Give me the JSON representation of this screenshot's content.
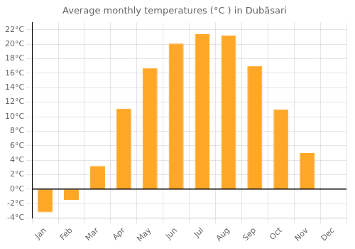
{
  "chart_data": {
    "type": "bar",
    "title": "Average monthly temperatures (°C ) in Dubăsari",
    "categories": [
      "Jan",
      "Feb",
      "Mar",
      "Apr",
      "May",
      "Jun",
      "Jul",
      "Aug",
      "Sep",
      "Oct",
      "Nov",
      "Dec"
    ],
    "values": [
      -3.2,
      -1.5,
      3.2,
      11.1,
      16.7,
      20.1,
      21.4,
      21.2,
      17.0,
      11.0,
      5.0,
      0.0
    ],
    "color": "#FFA726",
    "ylim": [
      -4,
      23
    ],
    "yticks": [
      {
        "value": -4,
        "label": "-4°C"
      },
      {
        "value": -2,
        "label": "-2°C"
      },
      {
        "value": 0,
        "label": "0°C"
      },
      {
        "value": 2,
        "label": "2°C"
      },
      {
        "value": 4,
        "label": "4°C"
      },
      {
        "value": 6,
        "label": "6°C"
      },
      {
        "value": 8,
        "label": "8°C"
      },
      {
        "value": 10,
        "label": "10°C"
      },
      {
        "value": 12,
        "label": "12°C"
      },
      {
        "value": 14,
        "label": "14°C"
      },
      {
        "value": 16,
        "label": "16°C"
      },
      {
        "value": 18,
        "label": "18°C"
      },
      {
        "value": 20,
        "label": "20°C"
      },
      {
        "value": 22,
        "label": "22°C"
      }
    ],
    "grid": true
  }
}
